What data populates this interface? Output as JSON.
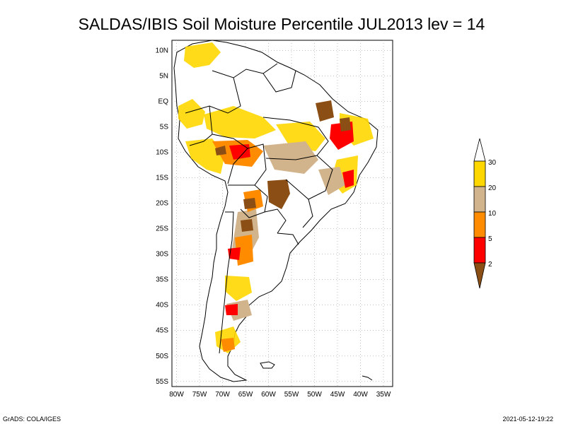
{
  "title": "SALDAS/IBIS Soil Moisture Percentile JUL2013 lev = 14",
  "map": {
    "lat_labels": [
      "10N",
      "5N",
      "EQ",
      "5S",
      "10S",
      "15S",
      "20S",
      "25S",
      "30S",
      "35S",
      "40S",
      "45S",
      "50S",
      "55S"
    ],
    "lon_labels": [
      "80W",
      "75W",
      "70W",
      "65W",
      "60W",
      "55W",
      "50W",
      "45W",
      "40W",
      "35W"
    ],
    "lat_range": [
      -56,
      12
    ],
    "lon_range": [
      -81,
      -33
    ]
  },
  "colorbar": {
    "levels": [
      "2",
      "5",
      "10",
      "20",
      "30"
    ],
    "colors": {
      "below_2": "#8b4e14",
      "2_5": "#ff0000",
      "5_10": "#ff8c00",
      "10_20": "#d2b48c",
      "20_30": "#ffd700",
      "above_30": "#ffffff"
    }
  },
  "footer": {
    "left": "GrADS: COLA/IGES",
    "right": "2021-05-12-19:22"
  }
}
